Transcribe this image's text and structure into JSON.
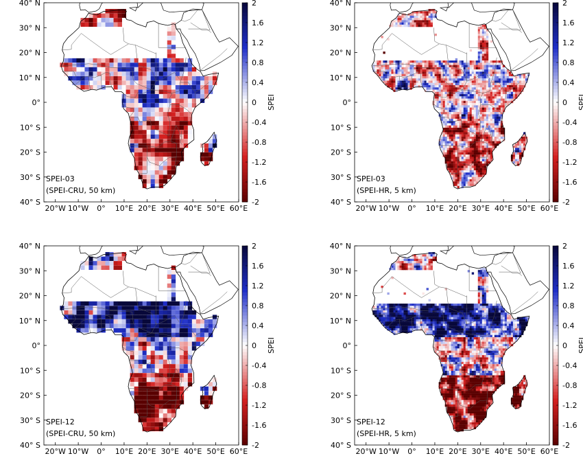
{
  "axis": {
    "x_ticks": [
      "20°W",
      "10°W",
      "0°",
      "10°E",
      "20°E",
      "30°E",
      "40°E",
      "50°E",
      "60°E"
    ],
    "y_ticks": [
      "40° N",
      "30° N",
      "20° N",
      "10° N",
      "0°",
      "10° S",
      "20° S",
      "30° S",
      "40° S"
    ],
    "lon_range": [
      -25,
      60
    ],
    "lat_range": [
      -40,
      40
    ]
  },
  "colorbar": {
    "label": "SPEI",
    "ticks": [
      "2",
      "1.6",
      "1.2",
      "0.8",
      "0.4",
      "0",
      "-0.4",
      "-0.8",
      "-1.2",
      "-1.6",
      "-2"
    ],
    "range": [
      -2,
      2
    ],
    "colors": {
      "max": "#08083a",
      "high": "#1f2fc8",
      "mid": "#ffffff",
      "low": "#d42020",
      "min": "#5a0000"
    }
  },
  "panels": [
    {
      "label_index": "SPEI-03",
      "label_source": "(SPEI-CRU, 50 km)",
      "resolution": "coarse"
    },
    {
      "label_index": "SPEI-03",
      "label_source": "(SPEI-HR, 5 km)",
      "resolution": "fine"
    },
    {
      "label_index": "SPEI-12",
      "label_source": "(SPEI-CRU, 50 km)",
      "resolution": "coarse"
    },
    {
      "label_index": "SPEI-12",
      "label_source": "(SPEI-HR, 5 km)",
      "resolution": "fine"
    }
  ],
  "colors": {
    "land_outline": "#000000",
    "border": "#555555",
    "background": "#ffffff"
  }
}
